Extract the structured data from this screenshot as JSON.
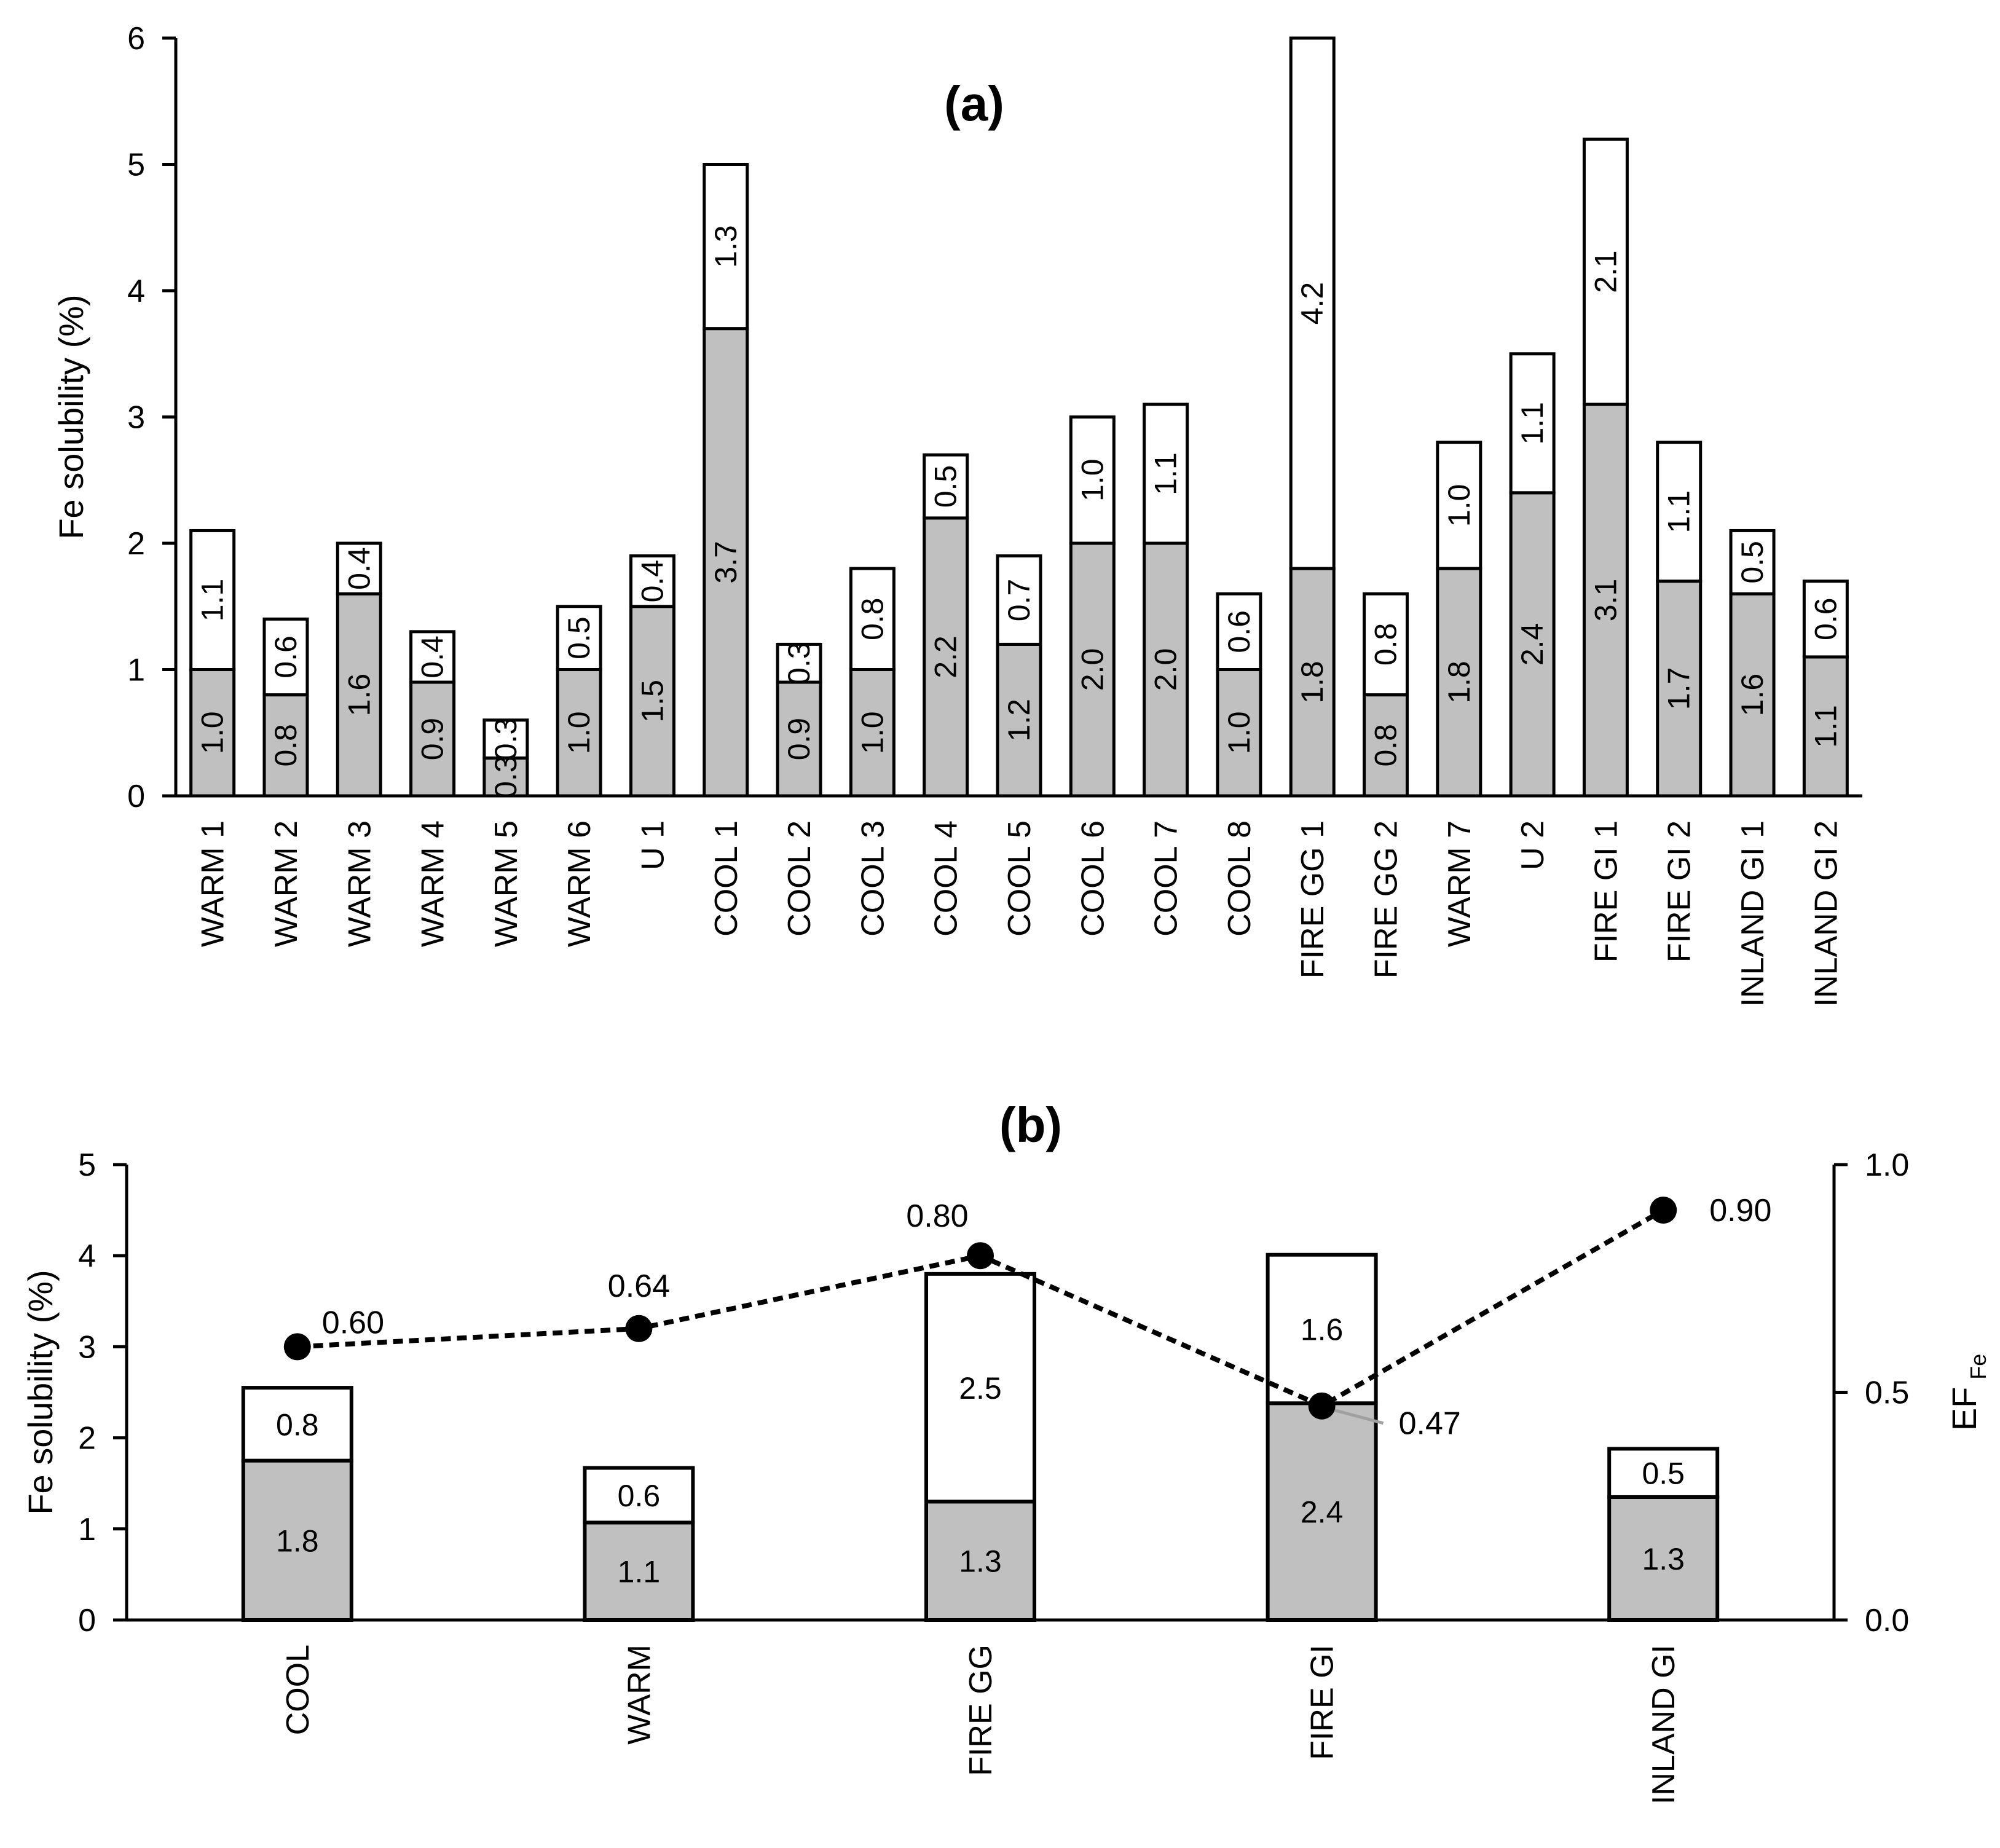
{
  "chart_data": [
    {
      "type": "bar",
      "stacked": true,
      "panel_label": "(a)",
      "ylabel": "Fe solubility (%)",
      "ylim": [
        0,
        6
      ],
      "yticks": [
        0,
        1,
        2,
        3,
        4,
        5,
        6
      ],
      "categories": [
        "WARM 1",
        "WARM 2",
        "WARM 3",
        "WARM 4",
        "WARM 5",
        "WARM 6",
        "U 1",
        "COOL 1",
        "COOL 2",
        "COOL 3",
        "COOL 4",
        "COOL 5",
        "COOL 6",
        "COOL 7",
        "COOL 8",
        "FIRE GG 1",
        "FIRE GG 2",
        "WARM 7",
        "U 2",
        "FIRE GI 1",
        "FIRE GI 2",
        "INLAND GI 1",
        "INLAND GI 2"
      ],
      "series": [
        {
          "name": "lower",
          "color": "#c0c0c0",
          "values": [
            1.0,
            0.8,
            1.6,
            0.9,
            0.3,
            1.0,
            1.5,
            3.7,
            0.9,
            1.0,
            2.2,
            1.2,
            2.0,
            2.0,
            1.0,
            1.8,
            0.8,
            1.8,
            2.4,
            3.1,
            1.7,
            1.6,
            1.1
          ],
          "labels": [
            "1.0",
            "0.8",
            "1.6",
            "0.9",
            "0.3",
            "1.0",
            "1.5",
            "3.7",
            "0.9",
            "1.0",
            "2.2",
            "1.2",
            "2.0",
            "2.0",
            "1.0",
            "1.8",
            "0.8",
            "1.8",
            "2.4",
            "3.1",
            "1.7",
            "1.6",
            "1.1"
          ]
        },
        {
          "name": "upper",
          "color": "#ffffff",
          "values": [
            1.1,
            0.6,
            0.4,
            0.4,
            0.3,
            0.5,
            0.4,
            1.3,
            0.3,
            0.8,
            0.5,
            0.7,
            1.0,
            1.1,
            0.6,
            4.2,
            0.8,
            1.0,
            1.1,
            2.1,
            1.1,
            0.5,
            0.6
          ],
          "labels": [
            "1.1",
            "0.6",
            "0.4",
            "0.4",
            "0.3",
            "0.5",
            "0.4",
            "1.3",
            "0.3",
            "0.8",
            "0.5",
            "0.7",
            "1.0",
            "1.1",
            "0.6",
            "4.2",
            "0.8",
            "1.0",
            "1.1",
            "2.1",
            "1.1",
            "0.5",
            "0.6"
          ]
        }
      ]
    },
    {
      "type": "bar",
      "stacked": true,
      "panel_label": "(b)",
      "ylabel": "Fe solubility (%)",
      "ylim": [
        0,
        5
      ],
      "yticks": [
        0,
        1,
        2,
        3,
        4,
        5
      ],
      "y2label": "EF",
      "y2label_sub": "Fe",
      "y2lim": [
        0,
        1
      ],
      "y2ticks": [
        "0.0",
        "0.5",
        "1.0"
      ],
      "categories": [
        "COOL",
        "WARM",
        "FIRE GG",
        "FIRE GI",
        "INLAND GI"
      ],
      "series": [
        {
          "name": "lower",
          "color": "#c0c0c0",
          "values": [
            1.75,
            1.07,
            1.3,
            2.38,
            1.35
          ],
          "labels": [
            "1.8",
            "1.1",
            "1.3",
            "2.4",
            "1.3"
          ]
        },
        {
          "name": "upper",
          "color": "#ffffff",
          "values": [
            0.8,
            0.6,
            2.5,
            1.63,
            0.53
          ],
          "labels": [
            "0.8",
            "0.6",
            "2.5",
            "1.6",
            "0.5"
          ]
        }
      ],
      "line_series": {
        "name": "EF Fe",
        "axis": "right",
        "style": "dashed",
        "values": [
          0.6,
          0.64,
          0.8,
          0.47,
          0.9
        ],
        "labels": [
          "0.60",
          "0.64",
          "0.80",
          "0.47",
          "0.90"
        ]
      }
    }
  ]
}
